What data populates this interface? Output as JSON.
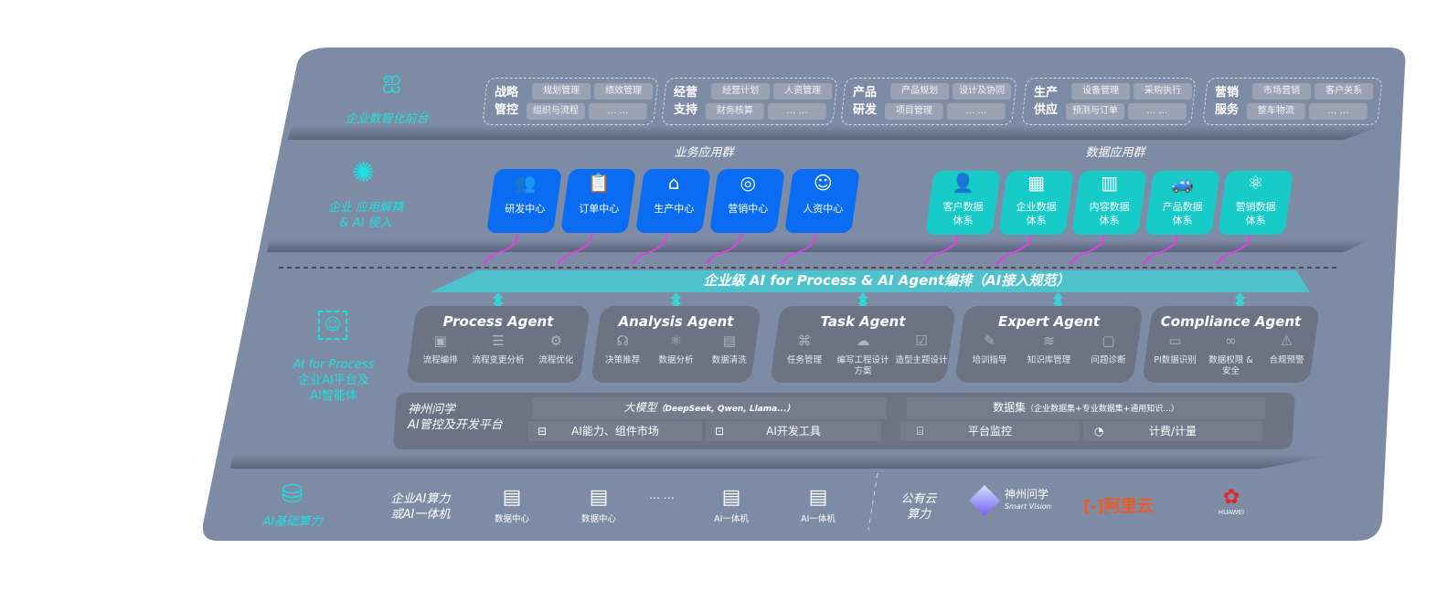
{
  "colors": {
    "panel": "#7e8ba5",
    "accent_cyan": "#1fe0e0",
    "blue_tile": "#0a6cf2",
    "teal_tile": "#17cbc9",
    "arrow_magenta": "#e23de8",
    "aliyun": "#f05a22",
    "huawei": "#e4252c"
  },
  "front": {
    "label": "企业数智化前台",
    "icon": "brain-icon",
    "groups": [
      {
        "title": [
          "战略",
          "管控"
        ],
        "chips": [
          "规划管理",
          "绩效管理",
          "组织与流程",
          "… …"
        ]
      },
      {
        "title": [
          "经营",
          "支持"
        ],
        "chips": [
          "经营计划",
          "人资管理",
          "财务核算",
          "… …"
        ]
      },
      {
        "title": [
          "产品",
          "研发"
        ],
        "chips": [
          "产品规划",
          "设计及协同",
          "项目管理",
          "… …"
        ]
      },
      {
        "title": [
          "生产",
          "供应"
        ],
        "chips": [
          "设备管理",
          "采购执行",
          "预测与订单",
          "… …"
        ]
      },
      {
        "title": [
          "营销",
          "服务"
        ],
        "chips": [
          "市场营销",
          "客户关系",
          "整车物流",
          "… …"
        ]
      }
    ]
  },
  "apps": {
    "label": [
      "企业 应用解耦",
      "& AI 侵入"
    ],
    "icon": "molecule-icon",
    "business_title": "业务应用群",
    "business": [
      {
        "label": "研发中心",
        "icon": "team-icon",
        "g": "👥"
      },
      {
        "label": "订单中心",
        "icon": "clipboard-icon",
        "g": "📋"
      },
      {
        "label": "生产中心",
        "icon": "factory-icon",
        "g": "⌂"
      },
      {
        "label": "营销中心",
        "icon": "target-icon",
        "g": "◎"
      },
      {
        "label": "人资中心",
        "icon": "person-icon",
        "g": "☺"
      }
    ],
    "data_title": "数据应用群",
    "data": [
      {
        "label": [
          "客户数据",
          "体系"
        ],
        "icon": "user-icon",
        "g": "👤"
      },
      {
        "label": [
          "企业数据",
          "体系"
        ],
        "icon": "building-icon",
        "g": "▦"
      },
      {
        "label": [
          "内容数据",
          "体系"
        ],
        "icon": "books-icon",
        "g": "▥"
      },
      {
        "label": [
          "产品数据",
          "体系"
        ],
        "icon": "car-icon",
        "g": "🚙"
      },
      {
        "label": [
          "营销数据",
          "体系"
        ],
        "icon": "atom-icon",
        "g": "⚛"
      }
    ]
  },
  "orchestration": "企业级 AI for Process & AI Agent编排（AI接入规范）",
  "ai": {
    "label": [
      "AI for Process",
      "企业AI平台及",
      "AI智能体"
    ],
    "icon": "face-scan-icon",
    "agents": [
      {
        "name": "Process Agent",
        "items": [
          {
            "label": "流程编排",
            "icon": "chart-icon",
            "g": "▣"
          },
          {
            "label": "流程变更分析",
            "icon": "list-icon",
            "g": "☰"
          },
          {
            "label": "流程优化",
            "icon": "tools-icon",
            "g": "⚙"
          }
        ]
      },
      {
        "name": "Analysis Agent",
        "items": [
          {
            "label": "决策推荐",
            "icon": "head-icon",
            "g": "☊"
          },
          {
            "label": "数据分析",
            "icon": "atom-icon",
            "g": "⚛"
          },
          {
            "label": "数据清洗",
            "icon": "document-icon",
            "g": "▤"
          }
        ]
      },
      {
        "name": "Task Agent",
        "items": [
          {
            "label": "任务管理",
            "icon": "network-icon",
            "g": "⌘"
          },
          {
            "label": "编写工程设计方案",
            "icon": "cloud-icon",
            "g": "☁"
          },
          {
            "label": "造型主题设计",
            "icon": "checklist-icon",
            "g": "☑"
          }
        ]
      },
      {
        "name": "Expert Agent",
        "items": [
          {
            "label": "培训指导",
            "icon": "pen-icon",
            "g": "✎"
          },
          {
            "label": "知识库管理",
            "icon": "layers-icon",
            "g": "≋"
          },
          {
            "label": "问题诊断",
            "icon": "monitor-icon",
            "g": "▢"
          }
        ]
      },
      {
        "name": "Compliance Agent",
        "items": [
          {
            "label": "PI数据识别",
            "icon": "id-card-icon",
            "g": "▭"
          },
          {
            "label": "数据权限 & 安全",
            "icon": "link-icon",
            "g": "∞"
          },
          {
            "label": "合规预警",
            "icon": "alert-icon",
            "g": "⚠"
          }
        ]
      }
    ],
    "platform": {
      "title": [
        "神州问学",
        "AI管控及开发平台"
      ],
      "llm": "大模型",
      "llm_note": "（DeepSeek, Qwen, Llama...）",
      "market": "AI能力、组件市场",
      "devtools": "AI开发工具",
      "dataset": "数据集",
      "dataset_note": "（企业数据集+专业数据集+通用知识...）",
      "monitor": "平台监控",
      "billing": "计费/计量"
    }
  },
  "infra": {
    "label": "AI基础算力",
    "icon": "database-icon",
    "enterprise": [
      "企业AI算力",
      "或AI一体机"
    ],
    "servers": [
      "数据中心",
      "数据中心",
      "AI一体机",
      "AI一体机"
    ],
    "ellipsis": "… …",
    "public": [
      "公有云",
      "算力"
    ],
    "vendors": {
      "smartvision": "神州问学",
      "smartvision_en": "Smart Vision",
      "aliyun": "阿里云",
      "huawei": "HUAWEI"
    }
  }
}
